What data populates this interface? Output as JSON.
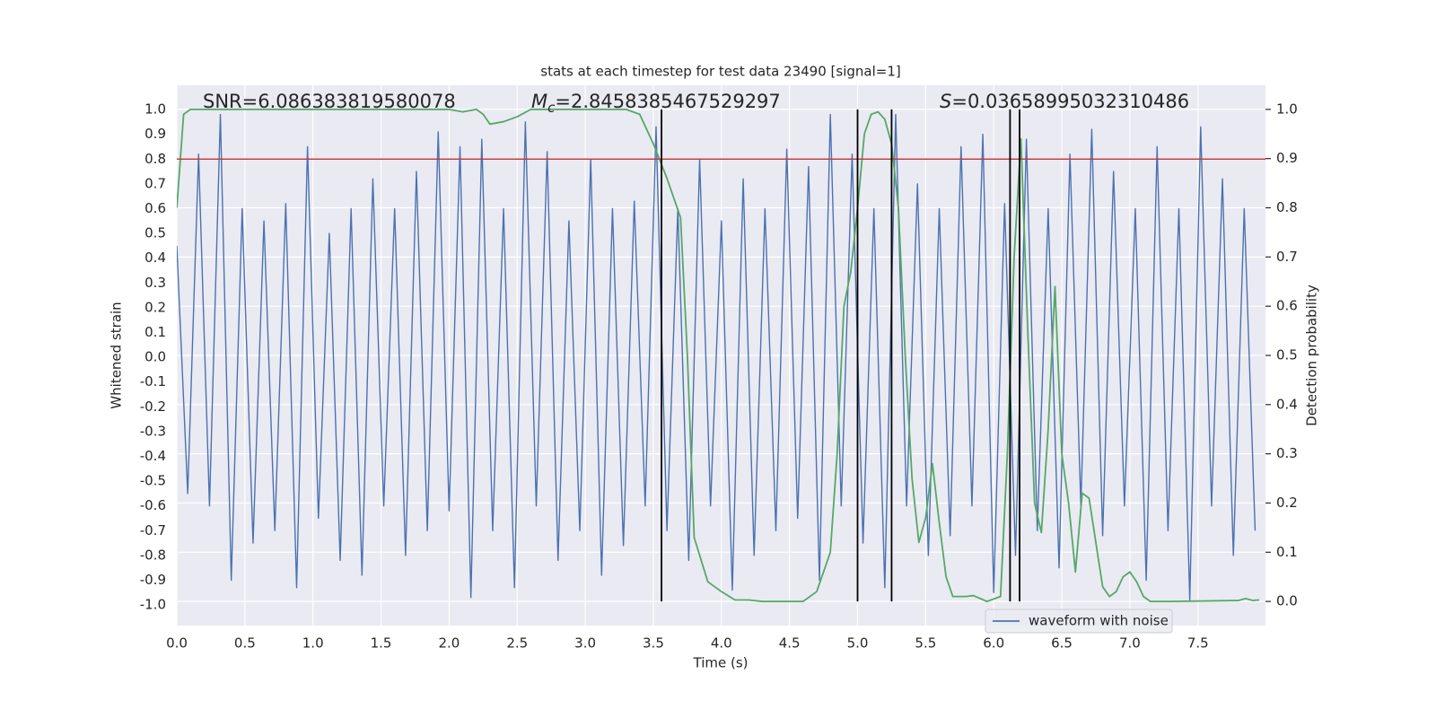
{
  "chart_data": {
    "type": "line",
    "title": "stats at each timestep for test data 23490 [signal=1]",
    "xlabel": "Time (s)",
    "ylabel": "Whitened strain",
    "y2label": "Detection probability",
    "xlim": [
      0,
      7.996
    ],
    "ylim": [
      -1.083,
      1.098
    ],
    "y2lim": [
      -0.049,
      1.049
    ],
    "xticks": [
      {
        "value": 0,
        "label": "0.0"
      },
      0.5,
      {
        "value": 1,
        "label": "1.0"
      },
      1.5,
      {
        "value": 2,
        "label": "2.0"
      },
      2.5,
      {
        "value": 3,
        "label": "3.0"
      },
      3.5,
      {
        "value": 4,
        "label": "4.0"
      },
      4.5,
      {
        "value": 5,
        "label": "5.0"
      },
      5.5,
      {
        "value": 6,
        "label": "6.0"
      },
      6.5,
      {
        "value": 7,
        "label": "7.0"
      },
      7.5
    ],
    "yticks": [
      {
        "value": 1,
        "label": "1.0"
      },
      0.9,
      0.8,
      0.7,
      0.6,
      0.5,
      0.4,
      0.3,
      0.2,
      0.1,
      {
        "value": 0,
        "label": "0.0"
      },
      -0.1,
      -0.2,
      -0.3,
      -0.4,
      -0.5,
      -0.6,
      -0.7,
      -0.8,
      -0.9,
      {
        "value": -1,
        "label": "-1.0"
      }
    ],
    "y2ticks": [
      {
        "value": 1,
        "label": "1.0"
      },
      0.9,
      0.8,
      0.7,
      0.6,
      0.5,
      0.4,
      0.3,
      0.2,
      0.1,
      {
        "value": 0,
        "label": "0.0"
      }
    ],
    "grid": "y2",
    "legend": "lower right",
    "annotations": [
      {
        "text": "SNR=6.086383819580078"
      },
      {
        "symbol": "M",
        "subscript": "c",
        "text": "=2.8458385467529297"
      },
      {
        "symbol": "S",
        "text": "=0.03658995032310486"
      }
    ],
    "hline_y": 0.8,
    "hline_color": "#c03d3e",
    "vlines_x": [
      3.56,
      5.0,
      5.25,
      6.12,
      6.19
    ],
    "vlines_y2_range": [
      0,
      1
    ],
    "vlines_color": "#000000",
    "series": [
      {
        "name": "waveform with noise",
        "color": "#4c72b0",
        "axis": "y",
        "x": [
          0,
          0.08,
          0.16,
          0.24,
          0.32,
          0.4,
          0.48,
          0.56,
          0.64,
          0.72,
          0.8,
          0.88,
          0.96,
          1.04,
          1.12,
          1.2,
          1.28,
          1.36,
          1.44,
          1.52,
          1.6,
          1.68,
          1.76,
          1.84,
          1.92,
          2,
          2.08,
          2.16,
          2.24,
          2.32,
          2.4,
          2.48,
          2.56,
          2.64,
          2.72,
          2.8,
          2.88,
          2.96,
          3.04,
          3.12,
          3.2,
          3.28,
          3.36,
          3.44,
          3.52,
          3.6,
          3.68,
          3.76,
          3.84,
          3.92,
          4,
          4.08,
          4.16,
          4.24,
          4.32,
          4.4,
          4.48,
          4.56,
          4.64,
          4.72,
          4.8,
          4.88,
          4.96,
          5.04,
          5.12,
          5.2,
          5.28,
          5.36,
          5.44,
          5.52,
          5.6,
          5.68,
          5.76,
          5.84,
          5.92,
          6,
          6.08,
          6.16,
          6.24,
          6.32,
          6.4,
          6.48,
          6.56,
          6.64,
          6.72,
          6.8,
          6.88,
          6.96,
          7.04,
          7.12,
          7.2,
          7.28,
          7.36,
          7.44,
          7.52,
          7.6,
          7.68,
          7.76,
          7.84,
          7.92
        ],
        "values": [
          0.45,
          -0.55,
          0.82,
          -0.6,
          0.98,
          -0.9,
          0.6,
          -0.75,
          0.55,
          -0.7,
          0.62,
          -0.93,
          0.85,
          -0.65,
          0.5,
          -0.82,
          0.6,
          -0.88,
          0.72,
          -0.6,
          0.6,
          -0.8,
          0.75,
          -0.7,
          0.91,
          -0.62,
          0.85,
          -0.97,
          0.88,
          -0.7,
          0.6,
          -0.93,
          0.95,
          -0.6,
          0.83,
          -0.82,
          0.55,
          -0.7,
          0.8,
          -0.88,
          0.6,
          -0.76,
          0.63,
          -0.6,
          0.93,
          -0.7,
          0.6,
          -0.82,
          0.8,
          -0.6,
          0.55,
          -0.94,
          0.72,
          -0.8,
          0.6,
          -0.7,
          0.84,
          -0.65,
          0.77,
          -0.9,
          0.98,
          -0.6,
          0.82,
          -0.75,
          0.6,
          -0.93,
          0.98,
          -0.6,
          0.7,
          -0.8,
          0.6,
          -0.72,
          0.85,
          -0.6,
          0.9,
          -0.95,
          0.62,
          -0.8,
          0.88,
          -0.7,
          0.6,
          -0.85,
          0.82,
          -0.6,
          0.92,
          -0.72,
          0.75,
          -0.6,
          0.6,
          -0.9,
          0.85,
          -0.7,
          0.6,
          -0.98,
          0.93,
          -0.6,
          0.72,
          -0.8,
          0.6,
          -0.7
        ]
      },
      {
        "color": "#55a868",
        "axis": "y2",
        "x": [
          0,
          0.05,
          0.1,
          0.2,
          0.5,
          1.0,
          1.5,
          2.0,
          2.1,
          2.2,
          2.25,
          2.3,
          2.4,
          2.5,
          2.6,
          3.0,
          3.3,
          3.4,
          3.5,
          3.6,
          3.7,
          3.75,
          3.8,
          3.9,
          4.0,
          4.1,
          4.2,
          4.3,
          4.6,
          4.7,
          4.8,
          4.85,
          4.9,
          4.95,
          5.0,
          5.05,
          5.1,
          5.15,
          5.2,
          5.25,
          5.3,
          5.35,
          5.4,
          5.45,
          5.5,
          5.55,
          5.6,
          5.65,
          5.7,
          5.8,
          5.85,
          5.95,
          6.05,
          6.1,
          6.15,
          6.2,
          6.25,
          6.3,
          6.35,
          6.4,
          6.45,
          6.5,
          6.55,
          6.6,
          6.65,
          6.7,
          6.8,
          6.85,
          6.9,
          6.95,
          7.0,
          7.05,
          7.1,
          7.15,
          7.3,
          7.8,
          7.85,
          7.9,
          7.95
        ],
        "values": [
          0.8,
          0.99,
          1.0,
          1.0,
          1.0,
          1.0,
          1.0,
          1.0,
          0.995,
          1.0,
          0.99,
          0.97,
          0.975,
          0.985,
          1.0,
          1.0,
          1.0,
          0.99,
          0.93,
          0.86,
          0.78,
          0.5,
          0.13,
          0.04,
          0.02,
          0.003,
          0.003,
          0.0,
          0.0,
          0.02,
          0.1,
          0.3,
          0.6,
          0.67,
          0.8,
          0.95,
          0.99,
          0.995,
          0.98,
          0.93,
          0.8,
          0.5,
          0.25,
          0.12,
          0.17,
          0.28,
          0.16,
          0.05,
          0.01,
          0.01,
          0.012,
          0.0,
          0.01,
          0.3,
          0.7,
          0.94,
          0.55,
          0.2,
          0.14,
          0.35,
          0.64,
          0.3,
          0.2,
          0.06,
          0.22,
          0.21,
          0.03,
          0.01,
          0.02,
          0.05,
          0.06,
          0.04,
          0.01,
          0.0,
          0.0,
          0.002,
          0.006,
          0.002,
          0.003
        ]
      }
    ]
  }
}
